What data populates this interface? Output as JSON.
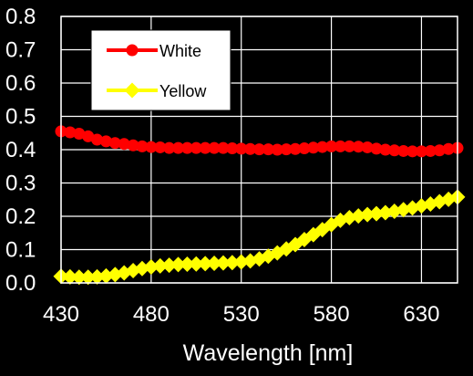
{
  "chart_data": {
    "type": "line",
    "title": "",
    "xlabel": "Wavelength [nm]",
    "ylabel": "",
    "xlim": [
      430,
      650
    ],
    "ylim": [
      0,
      0.8
    ],
    "xticks": [
      430,
      480,
      530,
      580,
      630
    ],
    "yticks": [
      0.0,
      0.1,
      0.2,
      0.3,
      0.4,
      0.5,
      0.6,
      0.7,
      0.8
    ],
    "ytick_labels": [
      "0.0",
      "0.1",
      "0.2",
      "0.3",
      "0.4",
      "0.5",
      "0.6",
      "0.7",
      "0.8"
    ],
    "grid": true,
    "legend_position": "top-left",
    "background": "#000000",
    "plot_background": "#000000",
    "grid_color": "#ffffff",
    "x": [
      430,
      435,
      440,
      445,
      450,
      455,
      460,
      465,
      470,
      475,
      480,
      485,
      490,
      495,
      500,
      505,
      510,
      515,
      520,
      525,
      530,
      535,
      540,
      545,
      550,
      555,
      560,
      565,
      570,
      575,
      580,
      585,
      590,
      595,
      600,
      605,
      610,
      615,
      620,
      625,
      630,
      635,
      640,
      645,
      650
    ],
    "series": [
      {
        "name": "White",
        "color": "#ff0000",
        "marker": "circle",
        "values": [
          0.455,
          0.452,
          0.448,
          0.44,
          0.43,
          0.425,
          0.42,
          0.417,
          0.413,
          0.41,
          0.408,
          0.407,
          0.405,
          0.405,
          0.405,
          0.405,
          0.405,
          0.405,
          0.405,
          0.404,
          0.403,
          0.402,
          0.401,
          0.401,
          0.4,
          0.401,
          0.402,
          0.404,
          0.406,
          0.408,
          0.41,
          0.41,
          0.41,
          0.409,
          0.407,
          0.403,
          0.4,
          0.398,
          0.396,
          0.395,
          0.395,
          0.396,
          0.398,
          0.402,
          0.405
        ]
      },
      {
        "name": "Yellow",
        "color": "#ffff00",
        "marker": "diamond",
        "values": [
          0.02,
          0.018,
          0.017,
          0.017,
          0.018,
          0.021,
          0.025,
          0.03,
          0.037,
          0.043,
          0.048,
          0.051,
          0.053,
          0.055,
          0.056,
          0.057,
          0.058,
          0.059,
          0.06,
          0.061,
          0.063,
          0.066,
          0.072,
          0.08,
          0.09,
          0.102,
          0.115,
          0.13,
          0.145,
          0.16,
          0.175,
          0.188,
          0.196,
          0.201,
          0.205,
          0.208,
          0.211,
          0.215,
          0.22,
          0.225,
          0.231,
          0.237,
          0.244,
          0.251,
          0.258
        ]
      }
    ]
  }
}
